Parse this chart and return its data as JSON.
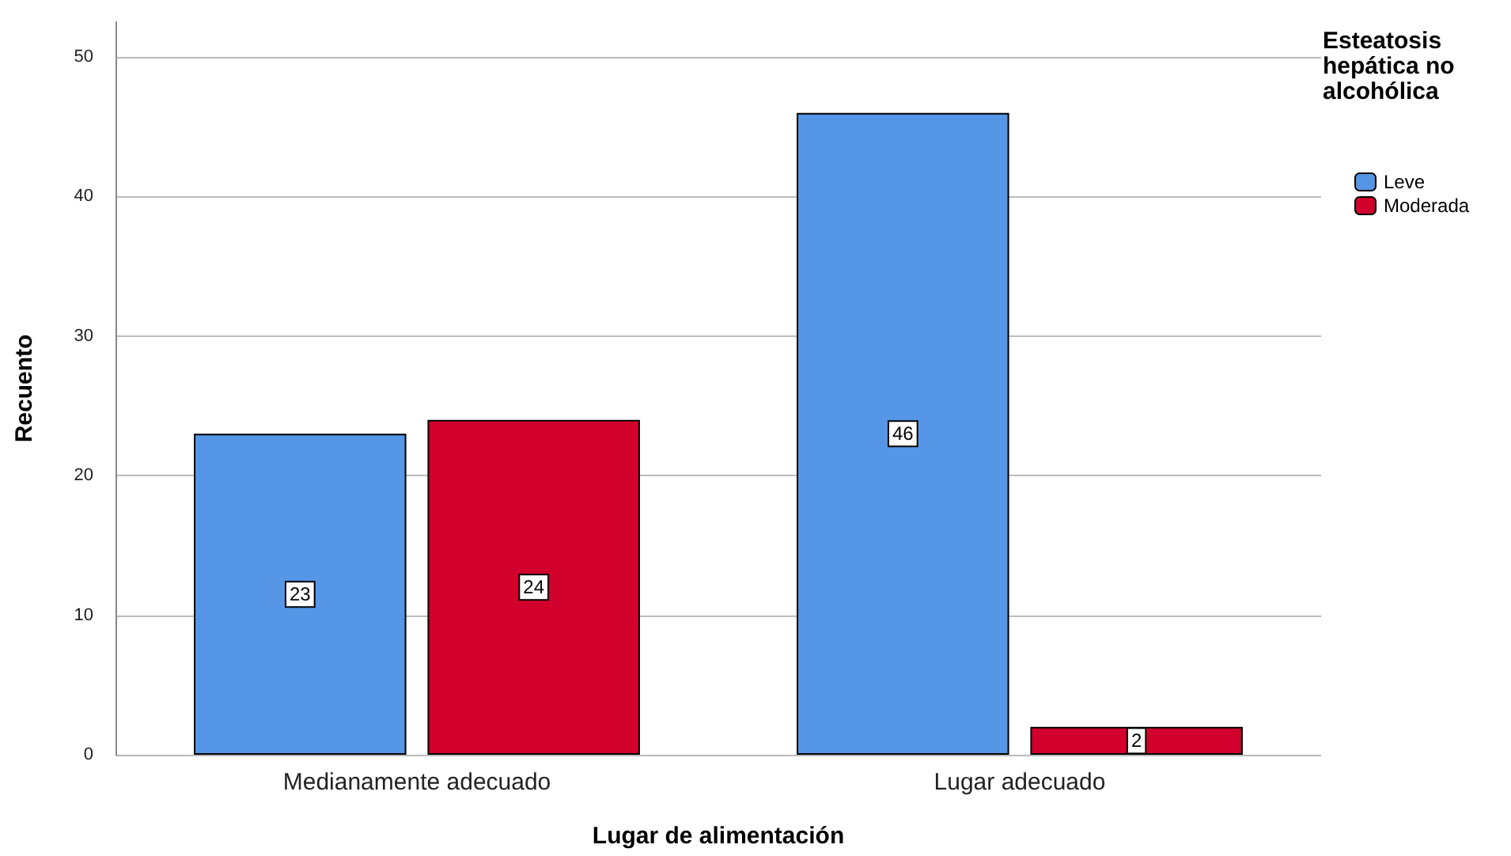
{
  "chart_data": {
    "type": "bar",
    "xlabel": "Lugar de alimentación",
    "ylabel": "Recuento",
    "legend_title": "Esteatosis hepática no alcohólica",
    "categories": [
      "Medianamente adecuado",
      "Lugar adecuado"
    ],
    "series": [
      {
        "name": "Leve",
        "color": "#5596e6",
        "values": [
          23,
          46
        ]
      },
      {
        "name": "Moderada",
        "color": "#d1002c",
        "values": [
          24,
          2
        ]
      }
    ],
    "ylim": [
      0,
      52.5
    ],
    "yticks": [
      0,
      10,
      20,
      30,
      40,
      50
    ],
    "grid": "y",
    "legend": "right",
    "data_labels": true
  }
}
